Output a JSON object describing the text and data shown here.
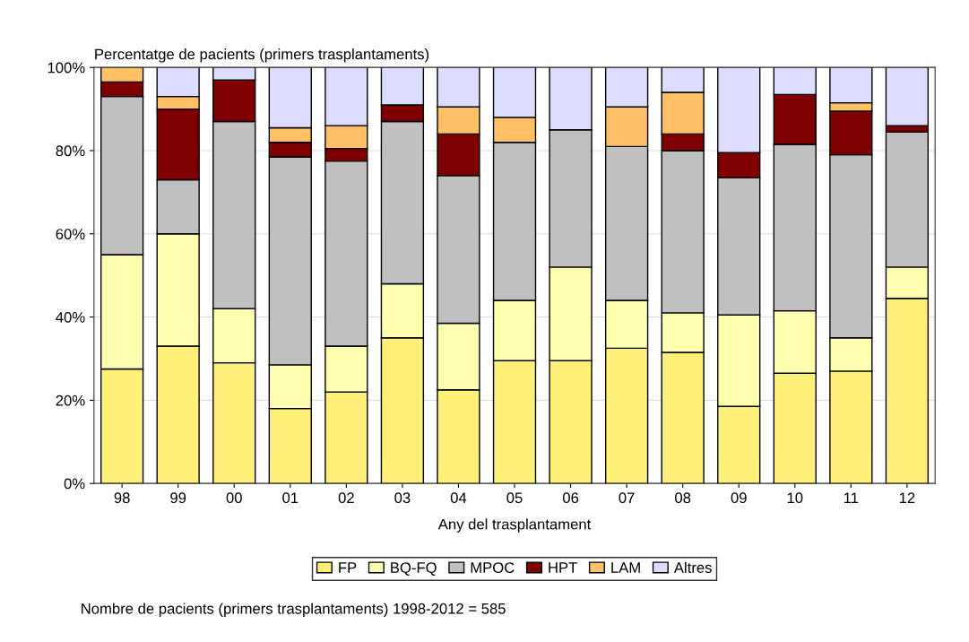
{
  "chart_data": {
    "type": "bar",
    "stacked": true,
    "ylabel": "Percentatge de pacients (primers trasplantaments)",
    "xlabel": "Any del trasplantament",
    "categories": [
      "98",
      "99",
      "00",
      "01",
      "02",
      "03",
      "04",
      "05",
      "06",
      "07",
      "08",
      "09",
      "10",
      "11",
      "12"
    ],
    "series": [
      {
        "name": "FP",
        "color": "#fff07a",
        "values": [
          27.5,
          33,
          29,
          18,
          22,
          35,
          22.5,
          29.5,
          29.5,
          32.5,
          31.5,
          18.5,
          26.5,
          27,
          44.5
        ]
      },
      {
        "name": "BQ-FQ",
        "color": "#ffffb0",
        "values": [
          27.5,
          27,
          13,
          10.5,
          11,
          13,
          16,
          14.5,
          22.5,
          11.5,
          9.5,
          22,
          15,
          8,
          7.5
        ]
      },
      {
        "name": "MPOC",
        "color": "#c0c0c0",
        "values": [
          38,
          13,
          45,
          50,
          44.5,
          39,
          35.5,
          38,
          33,
          37,
          39,
          33,
          40,
          44,
          32.5
        ]
      },
      {
        "name": "HPT",
        "color": "#7f0000",
        "values": [
          3.5,
          17,
          10,
          3.5,
          3,
          4,
          10,
          null,
          null,
          null,
          4,
          6,
          12,
          10.5,
          1.5
        ]
      },
      {
        "name": "LAM",
        "color": "#ffc066",
        "values": [
          3.5,
          3,
          null,
          3.5,
          5.5,
          null,
          6.5,
          6,
          null,
          9.5,
          10,
          null,
          null,
          2,
          null
        ]
      },
      {
        "name": "Altres",
        "color": "#dcdcff",
        "values": [
          null,
          7,
          3,
          14.5,
          14,
          9,
          9.5,
          12,
          15,
          9.5,
          6,
          20.5,
          6.5,
          8.5,
          14
        ]
      }
    ],
    "ylim": [
      0,
      100
    ],
    "yticks": [
      {
        "value": 0,
        "label": "0%"
      },
      {
        "value": 20,
        "label": "20%"
      },
      {
        "value": 40,
        "label": "40%"
      },
      {
        "value": 60,
        "label": "60%"
      },
      {
        "value": 80,
        "label": "80%"
      },
      {
        "value": 100,
        "label": "100%"
      }
    ],
    "grid": "y",
    "legend": "bottom",
    "annotations": [
      "Nombre de pacients (primers trasplantaments) 1998-2012 = 585"
    ]
  }
}
